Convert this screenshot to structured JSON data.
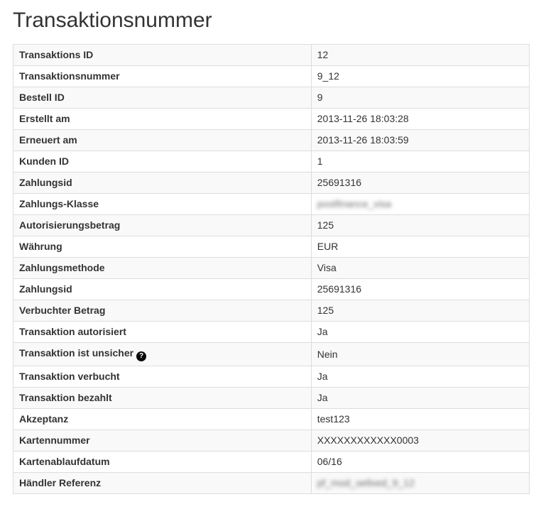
{
  "page": {
    "title": "Transaktionsnummer"
  },
  "colors": {
    "stripe_row_bg": "#f9f9f9",
    "table_border": "#dddddd",
    "text": "#333333",
    "help_icon_bg": "#0a0a0a",
    "help_icon_fg": "#ffffff"
  },
  "icons": {
    "help": "?"
  },
  "table": {
    "rows": [
      {
        "label": "Transaktions ID",
        "value": "12"
      },
      {
        "label": "Transaktionsnummer",
        "value": "9_12"
      },
      {
        "label": "Bestell ID",
        "value": "9"
      },
      {
        "label": "Erstellt am",
        "value": "2013-11-26 18:03:28"
      },
      {
        "label": "Erneuert am",
        "value": "2013-11-26 18:03:59"
      },
      {
        "label": "Kunden ID",
        "value": "1"
      },
      {
        "label": "Zahlungsid",
        "value": "25691316"
      },
      {
        "label": "Zahlungs-Klasse",
        "value": "postfinance_visa",
        "redacted": true
      },
      {
        "label": "Autorisierungsbetrag",
        "value": "125"
      },
      {
        "label": "Währung",
        "value": "EUR"
      },
      {
        "label": "Zahlungsmethode",
        "value": "Visa"
      },
      {
        "label": "Zahlungsid",
        "value": "25691316"
      },
      {
        "label": "Verbuchter Betrag",
        "value": "125"
      },
      {
        "label": "Transaktion autorisiert",
        "value": "Ja"
      },
      {
        "label": "Transaktion ist unsicher",
        "value": "Nein",
        "help_icon": true
      },
      {
        "label": "Transaktion verbucht",
        "value": "Ja"
      },
      {
        "label": "Transaktion bezahlt",
        "value": "Ja"
      },
      {
        "label": "Akzeptanz",
        "value": "test123"
      },
      {
        "label": "Kartennummer",
        "value": "XXXXXXXXXXXX0003"
      },
      {
        "label": "Kartenablaufdatum",
        "value": "06/16"
      },
      {
        "label": "Händler Referenz",
        "value": "pf_mod_sellxed_9_12",
        "redacted": true
      }
    ]
  }
}
